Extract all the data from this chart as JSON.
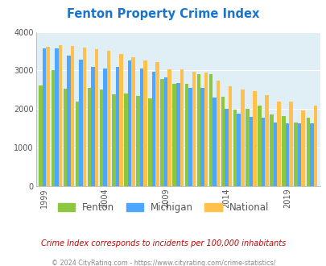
{
  "title": "Fenton Property Crime Index",
  "title_color": "#1874cd",
  "subtitle": "Crime Index corresponds to incidents per 100,000 inhabitants",
  "copyright": "© 2024 CityRating.com - https://www.cityrating.com/crime-statistics/",
  "years": [
    1999,
    2000,
    2001,
    2002,
    2003,
    2004,
    2005,
    2006,
    2007,
    2008,
    2009,
    2010,
    2011,
    2012,
    2013,
    2014,
    2015,
    2016,
    2017,
    2018,
    2019,
    2020,
    2021
  ],
  "fenton": [
    2620,
    3010,
    2530,
    2200,
    2550,
    2500,
    2380,
    2400,
    2350,
    2280,
    2770,
    2650,
    2650,
    2900,
    2900,
    2320,
    1990,
    2000,
    2080,
    1850,
    1820,
    1650,
    1780
  ],
  "michigan": [
    3580,
    3580,
    3390,
    3290,
    3090,
    3060,
    3100,
    3250,
    3060,
    2960,
    2820,
    2680,
    2560,
    2540,
    2300,
    2010,
    1890,
    1800,
    1780,
    1650,
    1620,
    1620,
    1620
  ],
  "national": [
    3610,
    3650,
    3640,
    3590,
    3550,
    3510,
    3430,
    3340,
    3260,
    3220,
    3040,
    3040,
    2970,
    2950,
    2740,
    2600,
    2500,
    2460,
    2360,
    2200,
    2200,
    1960,
    2100
  ],
  "fenton_color": "#8dc63f",
  "michigan_color": "#4da6ff",
  "national_color": "#ffc04c",
  "bg_color": "#e0eff5",
  "ylim": [
    0,
    4000
  ],
  "yticks": [
    0,
    1000,
    2000,
    3000,
    4000
  ],
  "grid_color": "#ffffff",
  "axis_color": "#555555",
  "tick_years": [
    1999,
    2004,
    2009,
    2014,
    2019
  ]
}
